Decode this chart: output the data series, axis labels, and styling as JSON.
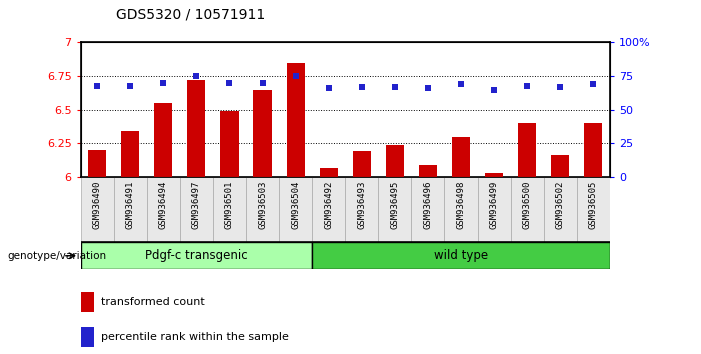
{
  "title": "GDS5320 / 10571911",
  "categories": [
    "GSM936490",
    "GSM936491",
    "GSM936494",
    "GSM936497",
    "GSM936501",
    "GSM936503",
    "GSM936504",
    "GSM936492",
    "GSM936493",
    "GSM936495",
    "GSM936496",
    "GSM936498",
    "GSM936499",
    "GSM936500",
    "GSM936502",
    "GSM936505"
  ],
  "bar_values": [
    6.2,
    6.34,
    6.55,
    6.72,
    6.49,
    6.65,
    6.85,
    6.07,
    6.19,
    6.24,
    6.09,
    6.3,
    6.03,
    6.4,
    6.16,
    6.4
  ],
  "dot_values": [
    68,
    68,
    70,
    75,
    70,
    70,
    75,
    66,
    67,
    67,
    66,
    69,
    65,
    68,
    67,
    69
  ],
  "bar_color": "#cc0000",
  "dot_color": "#2222cc",
  "ylim_left": [
    6.0,
    7.0
  ],
  "ylim_right": [
    0,
    100
  ],
  "yticks_left": [
    6.0,
    6.25,
    6.5,
    6.75,
    7.0
  ],
  "ytick_labels_left": [
    "6",
    "6.25",
    "6.5",
    "6.75",
    "7"
  ],
  "yticks_right": [
    0,
    25,
    50,
    75,
    100
  ],
  "ytick_labels_right": [
    "0",
    "25",
    "50",
    "75",
    "100%"
  ],
  "group1_label": "Pdgf-c transgenic",
  "group2_label": "wild type",
  "group1_count": 7,
  "group2_count": 9,
  "group1_color": "#aaffaa",
  "group2_color": "#44cc44",
  "xlabel_group": "genotype/variation",
  "legend_bar": "transformed count",
  "legend_dot": "percentile rank within the sample",
  "grid_yticks": [
    6.25,
    6.5,
    6.75
  ],
  "bar_width": 0.55,
  "bg_color": "#e8e8e8"
}
